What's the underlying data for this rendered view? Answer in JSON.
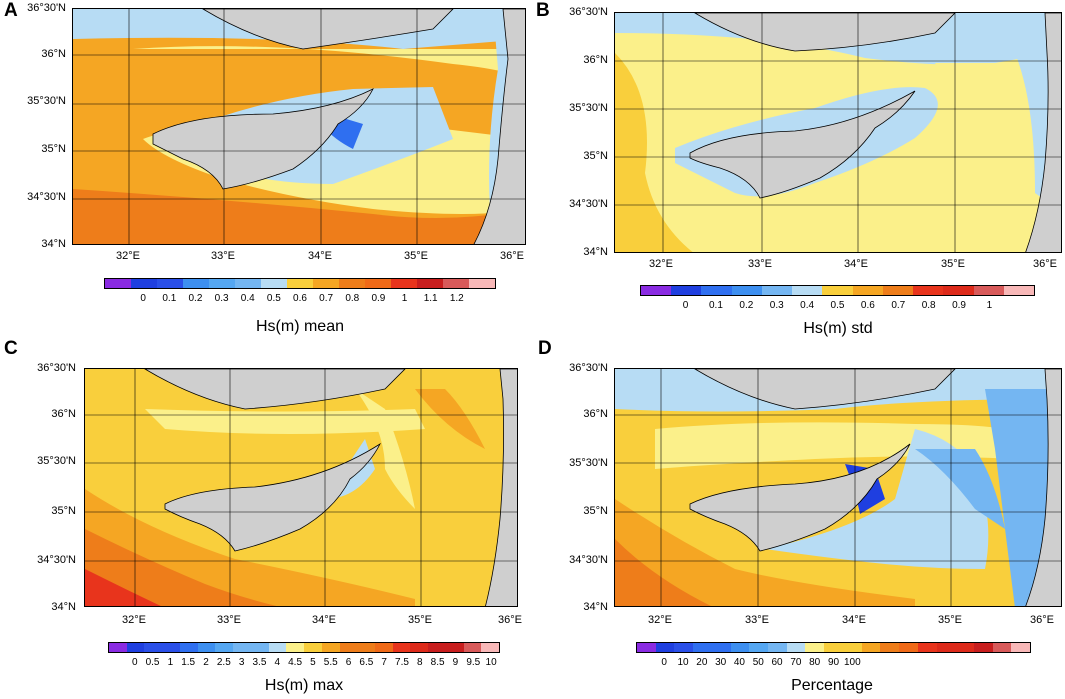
{
  "panels": [
    {
      "id": "A",
      "title": "Hs(m) mean",
      "ticks": [
        "0",
        "0.1",
        "0.2",
        "0.3",
        "0.4",
        "0.5",
        "0.6",
        "0.7",
        "0.8",
        "0.9",
        "1",
        "1.1",
        "1.2"
      ]
    },
    {
      "id": "B",
      "title": "Hs(m) std",
      "ticks": [
        "0",
        "0.1",
        "0.2",
        "0.3",
        "0.4",
        "0.5",
        "0.6",
        "0.7",
        "0.8",
        "0.9",
        "1"
      ]
    },
    {
      "id": "C",
      "title": "Hs(m) max",
      "ticks": [
        "0",
        "0.5",
        "1",
        "1.5",
        "2",
        "2.5",
        "3",
        "3.5",
        "4",
        "4.5",
        "5",
        "5.5",
        "6",
        "6.5",
        "7",
        "7.5",
        "8",
        "8.5",
        "9",
        "9.5",
        "10"
      ]
    },
    {
      "id": "D",
      "title": "Percentage",
      "ticks": [
        "0",
        "10",
        "20",
        "30",
        "40",
        "50",
        "60",
        "70",
        "80",
        "90",
        "100"
      ]
    }
  ],
  "lat_labels": [
    "36°30'N",
    "36°N",
    "35°30'N",
    "35°N",
    "34°30'N",
    "34°N"
  ],
  "lon_labels": [
    "32°E",
    "33°E",
    "34°E",
    "35°E",
    "36°E"
  ],
  "palette": {
    "land": "#cfcfcf",
    "purple": "#8a2be2",
    "blue": "#1f3fe0",
    "midblue": "#2f6ff0",
    "lightblue": "#74b6f2",
    "paleblue": "#b7dcf4",
    "paleyellow": "#fbf08a",
    "yellow": "#f9cf3c",
    "orange": "#f5a623",
    "darkorange": "#ee7d1a",
    "red": "#e8341c",
    "darkred": "#c81e1e",
    "pink": "#f8b8b8"
  }
}
